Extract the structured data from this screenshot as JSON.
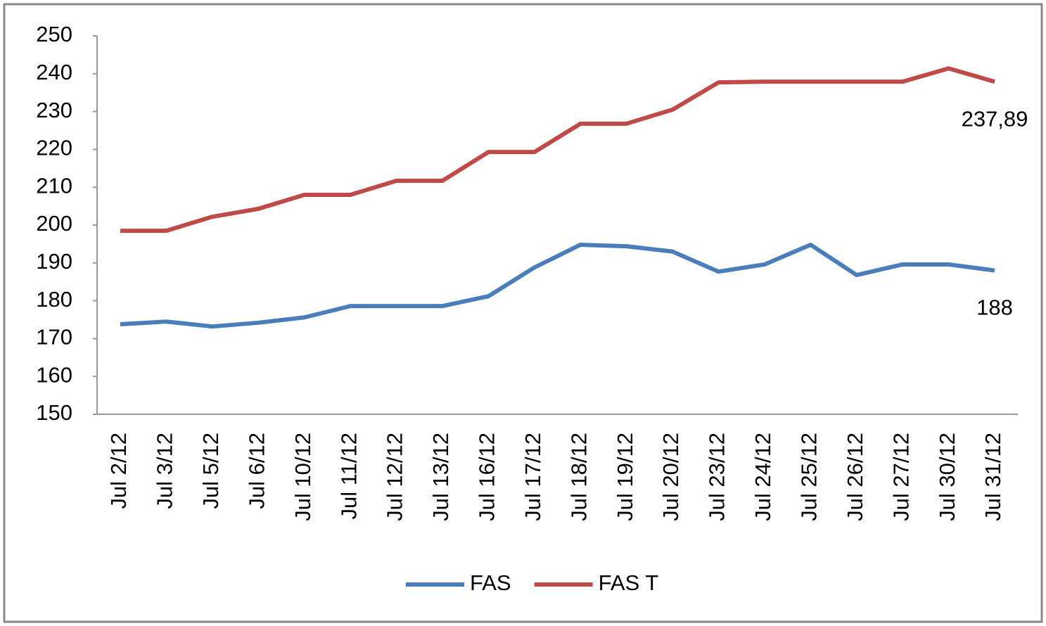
{
  "chart_data": {
    "type": "line",
    "categories": [
      "Jul 2/12",
      "Jul 3/12",
      "Jul 5/12",
      "Jul 6/12",
      "Jul 10/12",
      "Jul 11/12",
      "Jul 12/12",
      "Jul 13/12",
      "Jul 16/12",
      "Jul 17/12",
      "Jul 18/12",
      "Jul 19/12",
      "Jul 20/12",
      "Jul 23/12",
      "Jul 24/12",
      "Jul 25/12",
      "Jul 26/12",
      "Jul 27/12",
      "Jul 30/12",
      "Jul 31/12"
    ],
    "series": [
      {
        "name": "FAS",
        "color": "#4a7ebb",
        "values": [
          173.8,
          174.5,
          173.2,
          174.2,
          175.6,
          178.6,
          178.6,
          178.6,
          181.2,
          188.8,
          194.8,
          194.4,
          193,
          187.7,
          189.6,
          194.8,
          186.8,
          189.6,
          189.6,
          188
        ],
        "value_labels": [
          null,
          null,
          null,
          null,
          null,
          null,
          null,
          null,
          null,
          null,
          null,
          null,
          null,
          null,
          null,
          null,
          null,
          null,
          null,
          "188"
        ]
      },
      {
        "name": "FAS T",
        "color": "#be4b48",
        "values": [
          198.5,
          198.5,
          202.2,
          204.3,
          208,
          208,
          211.7,
          211.7,
          219.3,
          219.3,
          226.8,
          226.8,
          230.5,
          237.7,
          237.9,
          237.9,
          237.9,
          237.9,
          241.4,
          237.89
        ],
        "value_labels": [
          null,
          null,
          null,
          null,
          null,
          null,
          null,
          null,
          null,
          null,
          null,
          null,
          null,
          null,
          null,
          null,
          null,
          null,
          null,
          "237,89"
        ]
      }
    ],
    "ylim": [
      150,
      250
    ],
    "yticks": [
      150,
      160,
      170,
      180,
      190,
      200,
      210,
      220,
      230,
      240,
      250
    ],
    "grid": false,
    "legend": "bottom"
  }
}
